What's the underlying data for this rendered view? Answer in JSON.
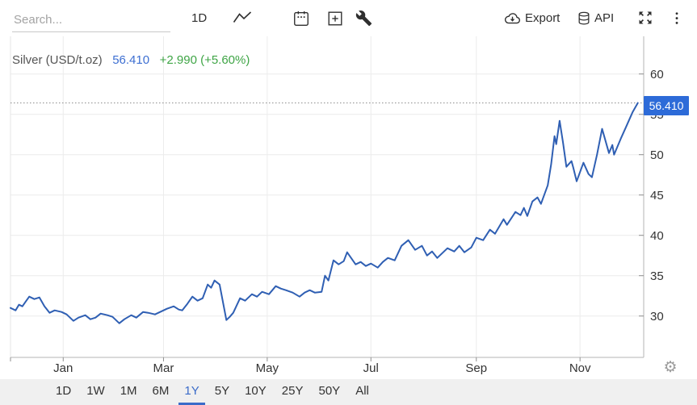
{
  "toolbar": {
    "search_placeholder": "Search...",
    "interval_label": "1D",
    "export_label": "Export",
    "api_label": "API",
    "gear_glyph": "⚙"
  },
  "header": {
    "instrument": "Silver (USD/t.oz)",
    "price": "56.410",
    "change": "+2.990 (+5.60%)"
  },
  "colors": {
    "accent_blue": "#2d6bd8",
    "header_price_blue": "#3d6fd2",
    "change_green": "#3fa546",
    "line_blue": "#2f5fb3",
    "active_range_blue": "#3b6cc9"
  },
  "range_bar": {
    "buttons": [
      "1D",
      "1W",
      "1M",
      "6M",
      "1Y",
      "5Y",
      "10Y",
      "25Y",
      "50Y",
      "All"
    ],
    "active": "1Y"
  },
  "chart_data": {
    "type": "line",
    "title": "Silver (USD/t.oz)",
    "legend": "none",
    "grid": true,
    "last_price": 56.41,
    "last_price_label": "56.410",
    "change_label": "+2.990 (+5.60%)",
    "ylim": [
      25,
      63
    ],
    "y_ticks": [
      30,
      35,
      40,
      45,
      50,
      55,
      60
    ],
    "x_ticks": [
      {
        "label": "Jan",
        "day": 31
      },
      {
        "label": "Mar",
        "day": 90
      },
      {
        "label": "May",
        "day": 151
      },
      {
        "label": "Jul",
        "day": 212
      },
      {
        "label": "Sep",
        "day": 274
      },
      {
        "label": "Nov",
        "day": 335
      }
    ],
    "series": [
      {
        "name": "Silver USD/t.oz",
        "points": [
          [
            0,
            31.0
          ],
          [
            3,
            30.7
          ],
          [
            5,
            31.4
          ],
          [
            7,
            31.2
          ],
          [
            9,
            31.8
          ],
          [
            11,
            32.4
          ],
          [
            14,
            32.1
          ],
          [
            17,
            32.3
          ],
          [
            20,
            31.2
          ],
          [
            23,
            30.4
          ],
          [
            26,
            30.7
          ],
          [
            30,
            30.5
          ],
          [
            33,
            30.2
          ],
          [
            37,
            29.4
          ],
          [
            40,
            29.8
          ],
          [
            44,
            30.1
          ],
          [
            47,
            29.6
          ],
          [
            50,
            29.8
          ],
          [
            53,
            30.3
          ],
          [
            57,
            30.1
          ],
          [
            60,
            29.9
          ],
          [
            64,
            29.1
          ],
          [
            67,
            29.6
          ],
          [
            71,
            30.1
          ],
          [
            74,
            29.8
          ],
          [
            78,
            30.5
          ],
          [
            81,
            30.4
          ],
          [
            85,
            30.2
          ],
          [
            92,
            30.9
          ],
          [
            96,
            31.2
          ],
          [
            99,
            30.8
          ],
          [
            101,
            30.7
          ],
          [
            104,
            31.5
          ],
          [
            107,
            32.4
          ],
          [
            110,
            31.9
          ],
          [
            113,
            32.2
          ],
          [
            116,
            33.9
          ],
          [
            118,
            33.5
          ],
          [
            120,
            34.4
          ],
          [
            123,
            33.9
          ],
          [
            127,
            29.5
          ],
          [
            129,
            29.9
          ],
          [
            131,
            30.4
          ],
          [
            135,
            32.2
          ],
          [
            138,
            31.9
          ],
          [
            142,
            32.7
          ],
          [
            145,
            32.4
          ],
          [
            148,
            33.0
          ],
          [
            152,
            32.7
          ],
          [
            156,
            33.7
          ],
          [
            159,
            33.4
          ],
          [
            162,
            33.2
          ],
          [
            166,
            32.9
          ],
          [
            170,
            32.4
          ],
          [
            173,
            32.9
          ],
          [
            176,
            33.2
          ],
          [
            179,
            32.9
          ],
          [
            183,
            33.0
          ],
          [
            185,
            35.0
          ],
          [
            187,
            34.4
          ],
          [
            190,
            36.9
          ],
          [
            193,
            36.4
          ],
          [
            196,
            36.8
          ],
          [
            198,
            37.9
          ],
          [
            200,
            37.3
          ],
          [
            203,
            36.4
          ],
          [
            206,
            36.7
          ],
          [
            209,
            36.2
          ],
          [
            212,
            36.5
          ],
          [
            216,
            36.0
          ],
          [
            219,
            36.7
          ],
          [
            222,
            37.2
          ],
          [
            226,
            36.9
          ],
          [
            230,
            38.7
          ],
          [
            234,
            39.4
          ],
          [
            238,
            38.2
          ],
          [
            242,
            38.7
          ],
          [
            245,
            37.5
          ],
          [
            248,
            38.0
          ],
          [
            251,
            37.2
          ],
          [
            254,
            37.8
          ],
          [
            257,
            38.4
          ],
          [
            261,
            38.0
          ],
          [
            264,
            38.7
          ],
          [
            267,
            37.9
          ],
          [
            271,
            38.5
          ],
          [
            274,
            39.7
          ],
          [
            278,
            39.4
          ],
          [
            282,
            40.7
          ],
          [
            285,
            40.2
          ],
          [
            290,
            42.0
          ],
          [
            292,
            41.3
          ],
          [
            297,
            42.9
          ],
          [
            300,
            42.5
          ],
          [
            302,
            43.4
          ],
          [
            304,
            42.4
          ],
          [
            307,
            44.2
          ],
          [
            310,
            44.7
          ],
          [
            312,
            43.9
          ],
          [
            316,
            46.2
          ],
          [
            318,
            48.8
          ],
          [
            320,
            52.3
          ],
          [
            321,
            51.3
          ],
          [
            323,
            54.2
          ],
          [
            325,
            51.5
          ],
          [
            327,
            48.5
          ],
          [
            330,
            49.2
          ],
          [
            331,
            48.4
          ],
          [
            333,
            46.7
          ],
          [
            337,
            49.0
          ],
          [
            340,
            47.6
          ],
          [
            342,
            47.2
          ],
          [
            345,
            50.0
          ],
          [
            348,
            53.2
          ],
          [
            352,
            50.2
          ],
          [
            354,
            51.2
          ],
          [
            355,
            50.0
          ],
          [
            359,
            52.0
          ],
          [
            362,
            53.4
          ],
          [
            366,
            55.3
          ],
          [
            369,
            56.41
          ]
        ]
      }
    ]
  }
}
